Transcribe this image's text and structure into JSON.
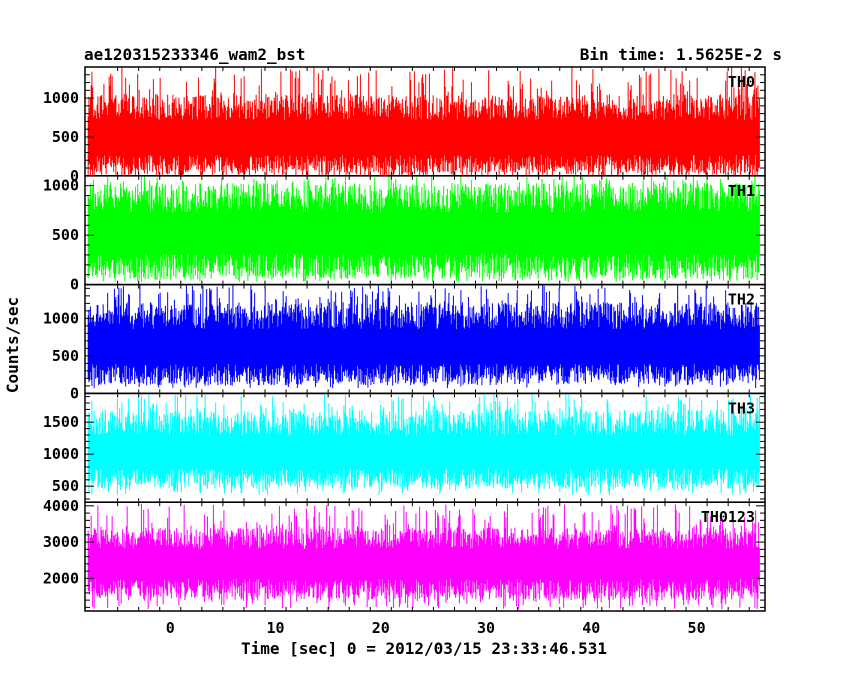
{
  "header": {
    "title": "ae120315233346_wam2_bst",
    "bin_time": "Bin time: 1.5625E-2 s"
  },
  "chart_data": {
    "type": "line",
    "title": "ae120315233346_wam2_bst",
    "xlabel": "Time [sec] 0 = 2012/03/15 23:33:46.531",
    "ylabel": "Counts/sec",
    "xlim": [
      -8.1,
      56.5
    ],
    "x_ticks": [
      0,
      10,
      20,
      30,
      40,
      50
    ],
    "x_range": [
      -7.8,
      56.0
    ],
    "bin_time_s": 0.015625,
    "grid": false,
    "panels": [
      {
        "name": "TH0",
        "color": "#ff0000",
        "ylim": [
          0,
          1400
        ],
        "y_ticks": [
          0,
          500,
          1000
        ],
        "baseline": 480,
        "low_typ": 150,
        "high_typ": 850,
        "spike_max": 1400,
        "dip_min": 40
      },
      {
        "name": "TH1",
        "color": "#00ff00",
        "ylim": [
          0,
          1100
        ],
        "y_ticks": [
          0,
          500,
          1000
        ],
        "baseline": 520,
        "low_typ": 200,
        "high_typ": 850,
        "spike_max": 1100,
        "dip_min": 50
      },
      {
        "name": "TH2",
        "color": "#0000ff",
        "ylim": [
          0,
          1450
        ],
        "y_ticks": [
          0,
          500,
          1000
        ],
        "baseline": 600,
        "low_typ": 280,
        "high_typ": 1000,
        "spike_max": 1450,
        "dip_min": 70
      },
      {
        "name": "TH3",
        "color": "#00ffff",
        "ylim": [
          250,
          1950
        ],
        "y_ticks": [
          500,
          1000,
          1500
        ],
        "baseline": 1000,
        "low_typ": 650,
        "high_typ": 1450,
        "spike_max": 1950,
        "dip_min": 360
      },
      {
        "name": "TH0123",
        "color": "#ff00ff",
        "ylim": [
          1100,
          4100
        ],
        "y_ticks": [
          2000,
          3000,
          4000
        ],
        "baseline": 2400,
        "low_typ": 1750,
        "high_typ": 3050,
        "spike_max": 4050,
        "dip_min": 1150
      }
    ]
  }
}
